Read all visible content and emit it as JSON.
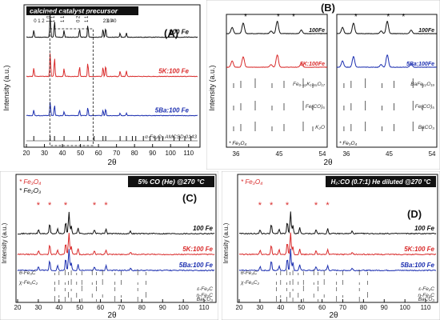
{
  "colors": {
    "black": "#111111",
    "red": "#d92b2b",
    "blue": "#1c2fb0",
    "gray": "#555555"
  },
  "chart_data": [
    {
      "id": "A",
      "type": "line",
      "panel_label": "(A)",
      "title_box": "calcined catalyst precursor",
      "xlabel": "2θ",
      "ylabel": "Intensity (a.u.)",
      "xlim": [
        20,
        115
      ],
      "xticks": [
        "20",
        "30",
        "40",
        "50",
        "60",
        "70",
        "80",
        "90",
        "100",
        "110"
      ],
      "series": [
        {
          "name": "100 Fe",
          "color": "black",
          "baseline": 0.78,
          "peaks": [
            [
              24.1,
              0.05
            ],
            [
              33.2,
              0.16
            ],
            [
              35.6,
              0.12
            ],
            [
              40.9,
              0.05
            ],
            [
              49.5,
              0.06
            ],
            [
              54.1,
              0.09
            ],
            [
              62.5,
              0.06
            ],
            [
              64.0,
              0.07
            ],
            [
              72.0,
              0.03
            ],
            [
              75.5,
              0.03
            ]
          ]
        },
        {
          "name": "5K:100 Fe",
          "color": "red",
          "baseline": 0.5,
          "peaks": [
            [
              24.1,
              0.06
            ],
            [
              33.2,
              0.17
            ],
            [
              35.6,
              0.14
            ],
            [
              40.9,
              0.06
            ],
            [
              49.5,
              0.07
            ],
            [
              54.1,
              0.1
            ],
            [
              62.5,
              0.07
            ],
            [
              64.0,
              0.08
            ],
            [
              72.0,
              0.04
            ],
            [
              75.5,
              0.04
            ]
          ]
        },
        {
          "name": "5Ba:100 Fe",
          "color": "blue",
          "baseline": 0.22,
          "peaks": [
            [
              24.1,
              0.04
            ],
            [
              33.2,
              0.1
            ],
            [
              35.6,
              0.08
            ],
            [
              40.9,
              0.03
            ],
            [
              49.5,
              0.04
            ],
            [
              54.1,
              0.06
            ],
            [
              62.5,
              0.04
            ],
            [
              64.0,
              0.05
            ],
            [
              72.0,
              0.02
            ],
            [
              75.5,
              0.02
            ]
          ]
        }
      ],
      "reference": {
        "name": "α-Fe₂O₃ AMCSD 0143",
        "sticks": [
          24.1,
          33.2,
          35.6,
          40.9,
          49.5,
          54.1,
          57.6,
          62.5,
          64.0,
          72.0,
          75.5,
          78.8,
          80.7,
          84.9,
          88.6,
          91.4,
          93.7,
          95.7,
          101.9,
          104.9,
          107.9,
          111.3
        ]
      },
      "peak_labels": [
        "0 1 2",
        "1 0 4",
        "1 1 0",
        "1 1 3",
        "0 2 4",
        "1 1 6",
        "2 1 4",
        "3 0 0"
      ],
      "dashed_box": [
        33,
        57
      ]
    },
    {
      "id": "B",
      "type": "line",
      "panel_label": "(B)",
      "xlabel": "2θ",
      "ylabel": "Intensity (a.u.)",
      "subpanels": [
        {
          "xticks": [
            "36",
            "45",
            "54"
          ],
          "series_labels": [
            "100Fe",
            "5K:100Fe"
          ],
          "ref_labels": [
            "Fe₀.₆₂K₁.₅₅O₁₇",
            "Fe(CO)₅",
            "K₂O"
          ],
          "footnote": "* Fe₃O₄"
        },
        {
          "xticks": [
            "36",
            "45",
            "54"
          ],
          "series_labels": [
            "100Fe",
            "5Ba:100Fe"
          ],
          "ref_labels": [
            "BaFe₁₂O₁₉",
            "Fe(CO)₅",
            "BaCO₃"
          ],
          "footnote": "* Fe₃O₄"
        }
      ]
    },
    {
      "id": "C",
      "type": "line",
      "panel_label": "(C)",
      "title_box": "5% CO (He) @270 °C",
      "legend": [
        "* Fe₃O₄",
        "* Fe₂O₃"
      ],
      "xlabel": "2θ",
      "ylabel": "Intensity (a.u.)",
      "xlim": [
        20,
        115
      ],
      "xticks": [
        "20",
        "30",
        "40",
        "50",
        "60",
        "70",
        "80",
        "90",
        "100",
        "110"
      ],
      "series_labels": [
        "100 Fe",
        "5K:100 Fe",
        "5Ba:100 Fe"
      ],
      "ref_labels": [
        "θ-Fe₃C",
        "χ-Fe₅C₂",
        "ε-Fe₂C",
        "η-Fe₂C",
        "BaCO₃"
      ]
    },
    {
      "id": "D",
      "type": "line",
      "panel_label": "(D)",
      "title_box": "H₂:CO (0.7:1) He diluted @270 °C",
      "legend": [
        "* Fe₃O₄"
      ],
      "xlabel": "2θ",
      "ylabel": "Intensity (a.u.)",
      "xlim": [
        20,
        115
      ],
      "xticks": [
        "20",
        "30",
        "40",
        "50",
        "60",
        "70",
        "80",
        "90",
        "100",
        "110"
      ],
      "series_labels": [
        "100 Fe",
        "5K:100 Fe",
        "5Ba:100 Fe"
      ],
      "ref_labels": [
        "θ-Fe₃C",
        "χ-Fe₅C₂",
        "ε-Fe₂C",
        "η-Fe₂C",
        "BaCO₃"
      ]
    }
  ]
}
